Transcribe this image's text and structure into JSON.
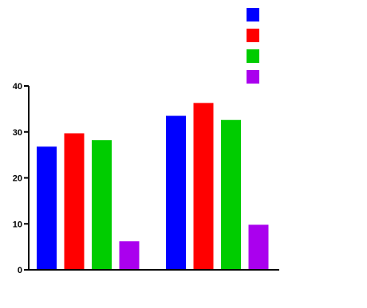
{
  "chart_data": {
    "type": "bar",
    "title": "",
    "xlabel": "",
    "ylabel": "",
    "categories": [
      "",
      ""
    ],
    "series": [
      {
        "name": "",
        "color": "#0000ff",
        "values": [
          26.8,
          33.5
        ]
      },
      {
        "name": "",
        "color": "#ff0000",
        "values": [
          29.7,
          36.3
        ]
      },
      {
        "name": "",
        "color": "#00cc00",
        "values": [
          28.2,
          32.6
        ]
      },
      {
        "name": "",
        "color": "#aa00ee",
        "values": [
          6.2,
          9.8
        ]
      }
    ],
    "ylim": [
      0,
      40
    ],
    "yticks": [
      "0",
      "10",
      "20",
      "30",
      "40"
    ],
    "grid": false,
    "legend_position": "top-right"
  }
}
